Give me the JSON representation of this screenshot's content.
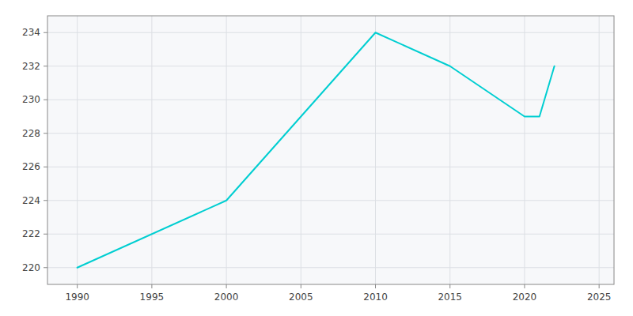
{
  "chart_data": {
    "type": "line",
    "x": [
      1990,
      2000,
      2010,
      2015,
      2020,
      2021,
      2022
    ],
    "values": [
      220,
      224,
      234,
      232,
      229,
      229,
      232
    ],
    "color": "#00CED1",
    "xlim": [
      1988,
      2026
    ],
    "ylim": [
      219,
      235
    ],
    "xticks": [
      1990,
      1995,
      2000,
      2005,
      2010,
      2015,
      2020,
      2025
    ],
    "yticks": [
      220,
      222,
      224,
      226,
      228,
      230,
      232,
      234
    ],
    "grid": true
  }
}
